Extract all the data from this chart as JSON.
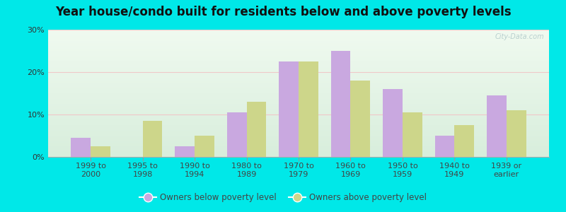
{
  "title": "Year house/condo built for residents below and above poverty levels",
  "categories": [
    "1999 to\n2000",
    "1995 to\n1998",
    "1990 to\n1994",
    "1980 to\n1989",
    "1970 to\n1979",
    "1960 to\n1969",
    "1950 to\n1959",
    "1940 to\n1949",
    "1939 or\nearlier"
  ],
  "below_poverty": [
    4.5,
    0,
    2.5,
    10.5,
    22.5,
    25.0,
    16.0,
    5.0,
    14.5
  ],
  "above_poverty": [
    2.5,
    8.5,
    5.0,
    13.0,
    22.5,
    18.0,
    10.5,
    7.5,
    11.0
  ],
  "below_color": "#c9a8e0",
  "above_color": "#cdd68a",
  "ylim": [
    0,
    30
  ],
  "yticks": [
    0,
    10,
    20,
    30
  ],
  "ytick_labels": [
    "0%",
    "10%",
    "20%",
    "30%"
  ],
  "outer_background": "#00e8e8",
  "grid_color": "#e8d8c8",
  "legend_below": "Owners below poverty level",
  "legend_above": "Owners above poverty level",
  "title_fontsize": 12,
  "tick_fontsize": 8,
  "legend_fontsize": 8.5
}
